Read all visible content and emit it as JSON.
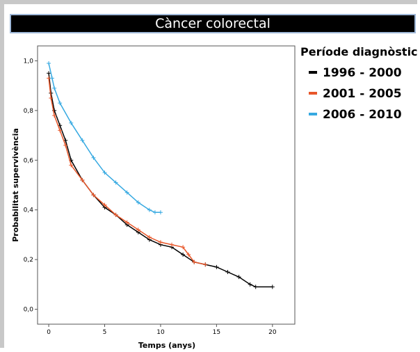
{
  "chart_data": {
    "type": "line",
    "title": "Càncer colorectal",
    "xlabel": "Temps (anys)",
    "ylabel": "Probabilitat supervivència",
    "legend_title": "Període diagnòstic",
    "xlim": [
      -1,
      22
    ],
    "ylim": [
      -0.06,
      1.06
    ],
    "xticks": [
      0,
      5,
      10,
      15,
      20
    ],
    "yticks": [
      {
        "value": 0,
        "label": "0,0"
      },
      {
        "value": 0.2,
        "label": "0,2"
      },
      {
        "value": 0.4,
        "label": "0,4"
      },
      {
        "value": 0.6,
        "label": "0,6"
      },
      {
        "value": 0.8,
        "label": "0,8"
      },
      {
        "value": 1,
        "label": "1,0"
      }
    ],
    "series": [
      {
        "name": "1996 - 2000",
        "color": "#000000",
        "x": [
          0,
          0.2,
          0.5,
          1,
          1.5,
          2,
          3,
          4,
          5,
          6,
          7,
          8,
          9,
          10,
          11,
          12,
          13,
          14,
          15,
          16,
          17,
          18,
          18.5,
          20
        ],
        "values": [
          0.95,
          0.87,
          0.8,
          0.74,
          0.68,
          0.6,
          0.52,
          0.46,
          0.41,
          0.38,
          0.34,
          0.31,
          0.28,
          0.26,
          0.25,
          0.22,
          0.19,
          0.18,
          0.17,
          0.15,
          0.13,
          0.1,
          0.09,
          0.09
        ]
      },
      {
        "name": "2001 - 2005",
        "color": "#e8572a",
        "x": [
          0,
          0.2,
          0.5,
          1,
          1.5,
          2,
          3,
          4,
          5,
          6,
          7,
          8,
          9,
          10,
          11,
          12,
          12.5,
          13,
          14
        ],
        "values": [
          0.93,
          0.85,
          0.78,
          0.72,
          0.66,
          0.58,
          0.52,
          0.46,
          0.42,
          0.38,
          0.35,
          0.32,
          0.29,
          0.27,
          0.26,
          0.25,
          0.22,
          0.19,
          0.18
        ]
      },
      {
        "name": "2006 - 2010",
        "color": "#36a9e1",
        "x": [
          0,
          0.3,
          0.5,
          1,
          2,
          3,
          4,
          5,
          6,
          7,
          8,
          9,
          9.5,
          10
        ],
        "values": [
          0.99,
          0.93,
          0.89,
          0.83,
          0.75,
          0.68,
          0.61,
          0.55,
          0.51,
          0.47,
          0.43,
          0.4,
          0.39,
          0.39
        ]
      }
    ]
  }
}
